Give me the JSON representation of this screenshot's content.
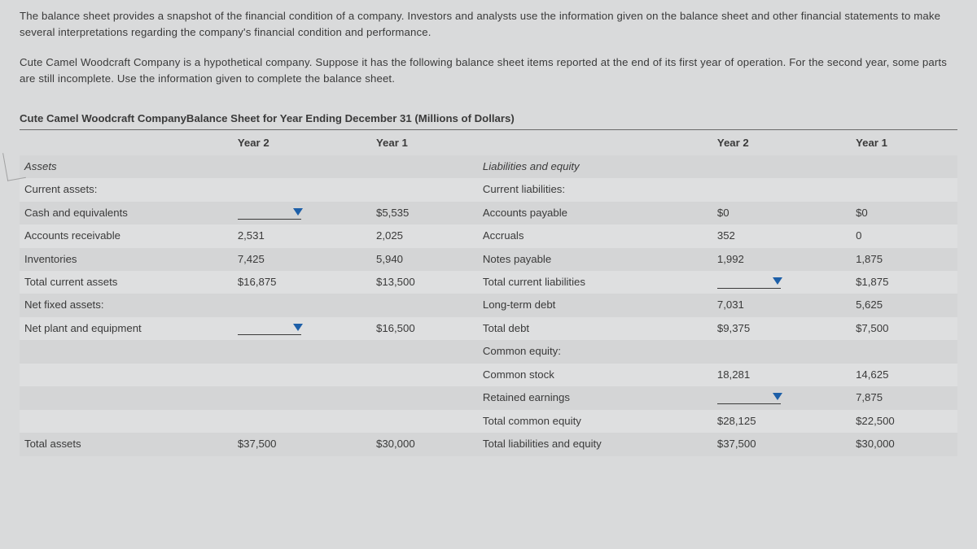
{
  "intro": {
    "p1": "The balance sheet provides a snapshot of the financial condition of a company. Investors and analysts use the information given on the balance sheet and other financial statements to make several interpretations regarding the company's financial condition and performance.",
    "p2": "Cute Camel Woodcraft Company is a hypothetical company. Suppose it has the following balance sheet items reported at the end of its first year of operation. For the second year, some parts are still incomplete. Use the information given to complete the balance sheet."
  },
  "title": "Cute Camel Woodcraft CompanyBalance Sheet for Year Ending December 31 (Millions of Dollars)",
  "headers": {
    "y2": "Year 2",
    "y1": "Year 1"
  },
  "sections": {
    "assets_label": "Assets",
    "liab_label": "Liabilities and equity",
    "curr_assets": "Current assets:",
    "curr_liab": "Current liabilities:",
    "net_fixed": "Net fixed assets:",
    "common_equity": "Common equity:"
  },
  "rows": {
    "cash": {
      "label": "Cash and equivalents",
      "y2": "",
      "y1": "$5,535"
    },
    "ar": {
      "label": "Accounts receivable",
      "y2": "2,531",
      "y1": "2,025"
    },
    "inv": {
      "label": "Inventories",
      "y2": "7,425",
      "y1": "5,940"
    },
    "tca": {
      "label": "Total current assets",
      "y2": "$16,875",
      "y1": "$13,500"
    },
    "nppe": {
      "label": "Net plant and equipment",
      "y2": "",
      "y1": "$16,500"
    },
    "tassets": {
      "label": "Total assets",
      "y2": "$37,500",
      "y1": "$30,000"
    },
    "ap": {
      "label": "Accounts payable",
      "y2": "$0",
      "y1": "$0"
    },
    "accruals": {
      "label": "Accruals",
      "y2": "352",
      "y1": "0"
    },
    "np": {
      "label": "Notes payable",
      "y2": "1,992",
      "y1": "1,875"
    },
    "tcl": {
      "label": "Total current liabilities",
      "y2": "",
      "y1": "$1,875"
    },
    "ltd": {
      "label": "Long-term debt",
      "y2": "7,031",
      "y1": "5,625"
    },
    "tdebt": {
      "label": "Total debt",
      "y2": "$9,375",
      "y1": "$7,500"
    },
    "cstock": {
      "label": "Common stock",
      "y2": "18,281",
      "y1": "14,625"
    },
    "re": {
      "label": "Retained earnings",
      "y2": "",
      "y1": "7,875"
    },
    "tce": {
      "label": "Total common equity",
      "y2": "$28,125",
      "y1": "$22,500"
    },
    "tle": {
      "label": "Total liabilities and equity",
      "y2": "$37,500",
      "y1": "$30,000"
    }
  }
}
